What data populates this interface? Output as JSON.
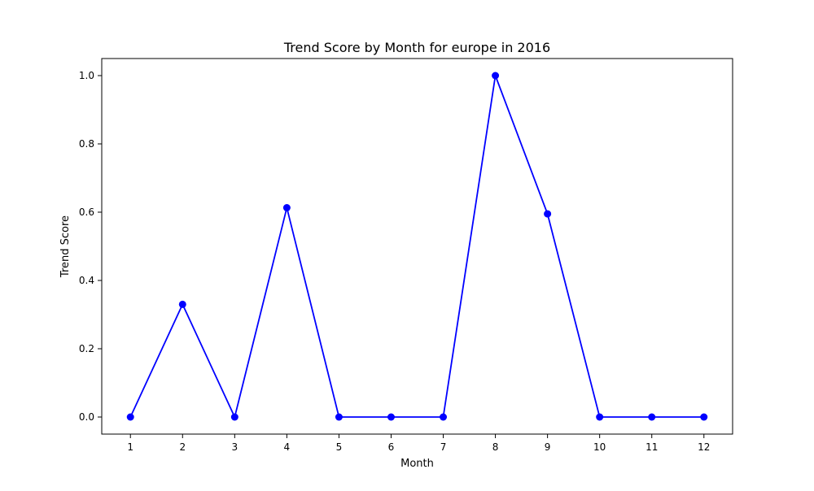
{
  "chart_data": {
    "type": "line",
    "title": "Trend Score by Month for europe in 2016",
    "xlabel": "Month",
    "ylabel": "Trend Score",
    "x": [
      1,
      2,
      3,
      4,
      5,
      6,
      7,
      8,
      9,
      10,
      11,
      12
    ],
    "series": [
      {
        "values": [
          0,
          0.33,
          0,
          0.613,
          0,
          0,
          0,
          1.0,
          0.595,
          0,
          0,
          0
        ]
      }
    ],
    "xticks": [
      "1",
      "2",
      "3",
      "4",
      "5",
      "6",
      "7",
      "8",
      "9",
      "10",
      "11",
      "12"
    ],
    "yticks": [
      "0.0",
      "0.2",
      "0.4",
      "0.6",
      "0.8",
      "1.0"
    ],
    "ytick_values": [
      0,
      0.2,
      0.4,
      0.6,
      0.8,
      1.0
    ],
    "xlim": [
      0.45,
      12.55
    ],
    "ylim": [
      -0.05,
      1.05
    ],
    "grid": false,
    "line_color": "#0000ff",
    "marker": "circle"
  }
}
